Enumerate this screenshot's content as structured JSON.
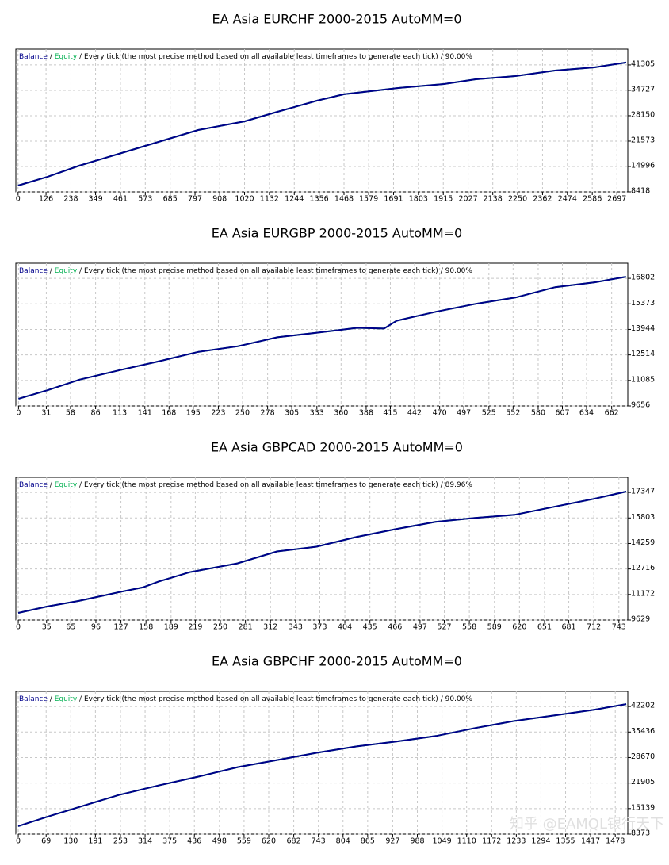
{
  "chart_data": [
    {
      "type": "line",
      "title": "EA Asia EURCHF 2000-2015 AutoMM=0",
      "separator": "/",
      "model": "Every tick (the most precise method based on all available least timeframes to generate each tick)",
      "quality": "90.00%",
      "x": [
        0,
        132,
        275,
        454,
        596,
        811,
        1021,
        1168,
        1346,
        1468,
        1704,
        1918,
        2061,
        2239,
        2418,
        2596,
        2739
      ],
      "series": [
        {
          "name": "Equity",
          "color": "#00b050",
          "values": [
            10060,
            12300,
            15200,
            18280,
            20750,
            24450,
            26700,
            29170,
            32050,
            33700,
            35300,
            36370,
            37600,
            38420,
            39860,
            40680,
            41920
          ]
        },
        {
          "name": "Balance",
          "color": "#00008b",
          "values": [
            10060,
            12300,
            15200,
            18280,
            20750,
            24450,
            26700,
            29170,
            32050,
            33700,
            35300,
            36370,
            37600,
            38420,
            39860,
            40680,
            41920
          ]
        }
      ],
      "xlim": [
        -10,
        2746
      ],
      "ylim": [
        8418,
        45400
      ],
      "xticks": [
        0,
        126,
        238,
        349,
        461,
        573,
        685,
        797,
        908,
        1020,
        1132,
        1244,
        1356,
        1468,
        1579,
        1691,
        1803,
        1915,
        2027,
        2138,
        2250,
        2362,
        2474,
        2586,
        2697
      ],
      "yticks": [
        8418,
        14996,
        21573,
        28150,
        34727,
        41305
      ],
      "grid": true
    },
    {
      "type": "line",
      "title": "EA Asia EURGBP 2000-2015 AutoMM=0",
      "separator": "/",
      "model": "Every tick (the most precise method based on all available least timeframes to generate each tick)",
      "quality": "90.00%",
      "x": [
        0,
        33,
        68,
        113,
        157,
        201,
        245,
        289,
        334,
        378,
        408,
        422,
        466,
        510,
        555,
        599,
        643,
        678
      ],
      "series": [
        {
          "name": "Equity",
          "color": "#00b050",
          "values": [
            10058,
            10550,
            11130,
            11665,
            12160,
            12690,
            13000,
            13500,
            13765,
            14030,
            13990,
            14430,
            14930,
            15373,
            15730,
            16310,
            16580,
            16890
          ]
        },
        {
          "name": "Balance",
          "color": "#00008b",
          "values": [
            10058,
            10550,
            11130,
            11665,
            12160,
            12690,
            13000,
            13500,
            13765,
            14030,
            13990,
            14430,
            14930,
            15373,
            15730,
            16310,
            16580,
            16890
          ]
        }
      ],
      "xlim": [
        -3,
        680
      ],
      "ylim": [
        9656,
        17650
      ],
      "xticks": [
        0,
        31,
        58,
        86,
        113,
        141,
        168,
        195,
        223,
        250,
        278,
        305,
        333,
        360,
        388,
        415,
        442,
        470,
        497,
        525,
        552,
        580,
        607,
        634,
        662
      ],
      "yticks": [
        9656,
        11085,
        12514,
        13944,
        15373,
        16802
      ],
      "grid": true
    },
    {
      "type": "line",
      "title": "EA Asia GBPCAD 2000-2015 AutoMM=0",
      "separator": "/",
      "model": "Every tick (the most precise method based on all available least timeframes to generate each tick)",
      "quality": "89.96%",
      "x": [
        0,
        36,
        75,
        125,
        154,
        173,
        212,
        271,
        320,
        369,
        418,
        467,
        516,
        565,
        614,
        663,
        712,
        752
      ],
      "series": [
        {
          "name": "Equity",
          "color": "#00b050",
          "values": [
            10063,
            10449,
            10787,
            11317,
            11600,
            11945,
            12523,
            13054,
            13777,
            14066,
            14645,
            15128,
            15562,
            15803,
            15996,
            16478,
            16960,
            17400
          ]
        },
        {
          "name": "Balance",
          "color": "#00008b",
          "values": [
            10063,
            10449,
            10787,
            11317,
            11600,
            11945,
            12523,
            13054,
            13777,
            14066,
            14645,
            15128,
            15562,
            15803,
            15996,
            16478,
            16960,
            17400
          ]
        }
      ],
      "xlim": [
        -3,
        754
      ],
      "ylim": [
        9629,
        18263
      ],
      "xticks": [
        0,
        35,
        65,
        96,
        127,
        158,
        189,
        219,
        250,
        281,
        312,
        343,
        373,
        404,
        435,
        466,
        497,
        527,
        558,
        589,
        620,
        651,
        681,
        712,
        743
      ],
      "yticks": [
        9629,
        11172,
        12716,
        14259,
        15803,
        17347
      ],
      "grid": true
    },
    {
      "type": "line",
      "title": "EA Asia GBPCHF 2000-2015 AutoMM=0",
      "separator": "/",
      "model": "Every tick (the most precise method based on all available least timeframes to generate each tick)",
      "quality": "90.00%",
      "x": [
        0,
        73,
        151,
        249,
        347,
        445,
        544,
        642,
        740,
        838,
        936,
        1034,
        1132,
        1230,
        1328,
        1427,
        1505
      ],
      "series": [
        {
          "name": "Equity",
          "color": "#00b050",
          "values": [
            10487,
            13025,
            15560,
            18733,
            21270,
            23600,
            26140,
            28035,
            29940,
            31630,
            32900,
            34380,
            36500,
            38400,
            39880,
            41360,
            42840
          ]
        },
        {
          "name": "Balance",
          "color": "#00008b",
          "values": [
            10487,
            13025,
            15560,
            18733,
            21270,
            23600,
            26140,
            28035,
            29940,
            31630,
            32900,
            34380,
            36500,
            38400,
            39880,
            41360,
            42840
          ]
        }
      ],
      "xlim": [
        -6,
        1509
      ],
      "ylim": [
        8373,
        46220
      ],
      "xticks": [
        0,
        69,
        130,
        191,
        253,
        314,
        375,
        436,
        498,
        559,
        620,
        682,
        743,
        804,
        865,
        927,
        988,
        1049,
        1110,
        1172,
        1233,
        1294,
        1355,
        1417,
        1478
      ],
      "yticks": [
        8373,
        15139,
        21905,
        28670,
        35436,
        42202
      ],
      "grid": true
    }
  ],
  "watermark": "知乎 @EAMQL银行天下"
}
